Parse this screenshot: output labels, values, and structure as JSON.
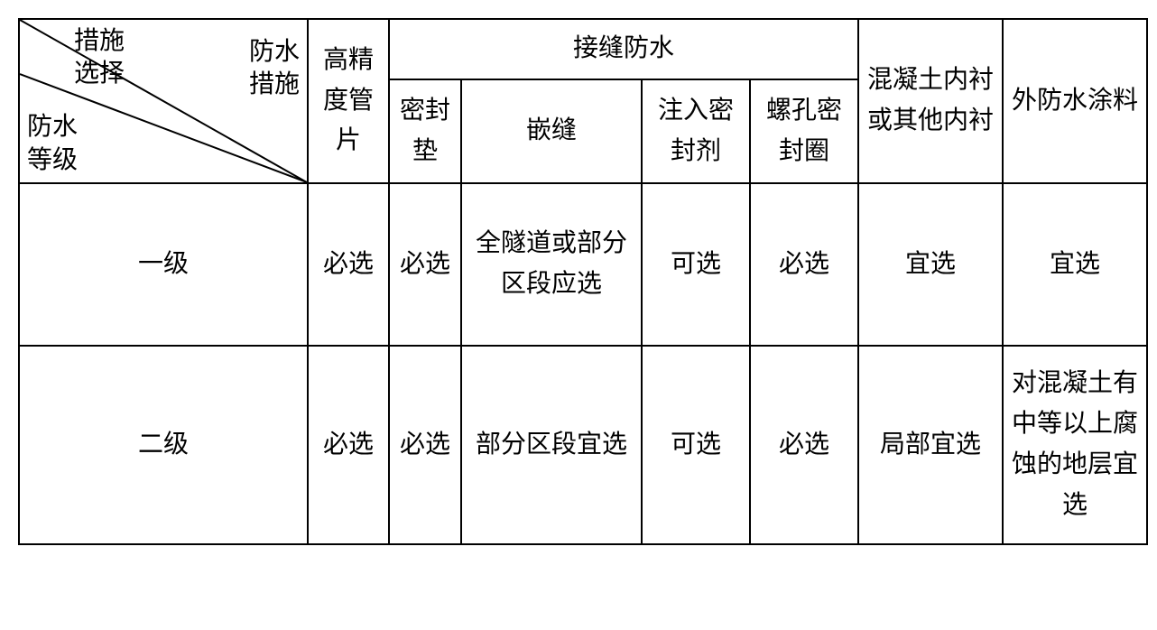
{
  "table": {
    "border_color": "#000000",
    "background_color": "#ffffff",
    "font_family": "SimSun",
    "font_size_pt": 21,
    "diagonal_header": {
      "top_label": "措施\n选择",
      "right_label": "防水\n措施",
      "bottom_label": "防水\n等级"
    },
    "header": {
      "col1": "高精度管片",
      "joint_group": "接缝防水",
      "col2": "密封垫",
      "col3": "嵌缝",
      "col4": "注入密封剂",
      "col5": "螺孔密封圈",
      "col6": "混凝土内衬或其他内衬",
      "col7": "外防水涂料"
    },
    "rows": [
      {
        "grade": "一级",
        "c1": "必选",
        "c2": "必选",
        "c3": "全隧道或部分区段应选",
        "c4": "可选",
        "c5": "必选",
        "c6": "宜选",
        "c7": "宜选"
      },
      {
        "grade": "二级",
        "c1": "必选",
        "c2": "必选",
        "c3": "部分区段宜选",
        "c4": "可选",
        "c5": "必选",
        "c6": "局部宜选",
        "c7": "对混凝土有中等以上腐蚀的地层宜选"
      }
    ]
  }
}
